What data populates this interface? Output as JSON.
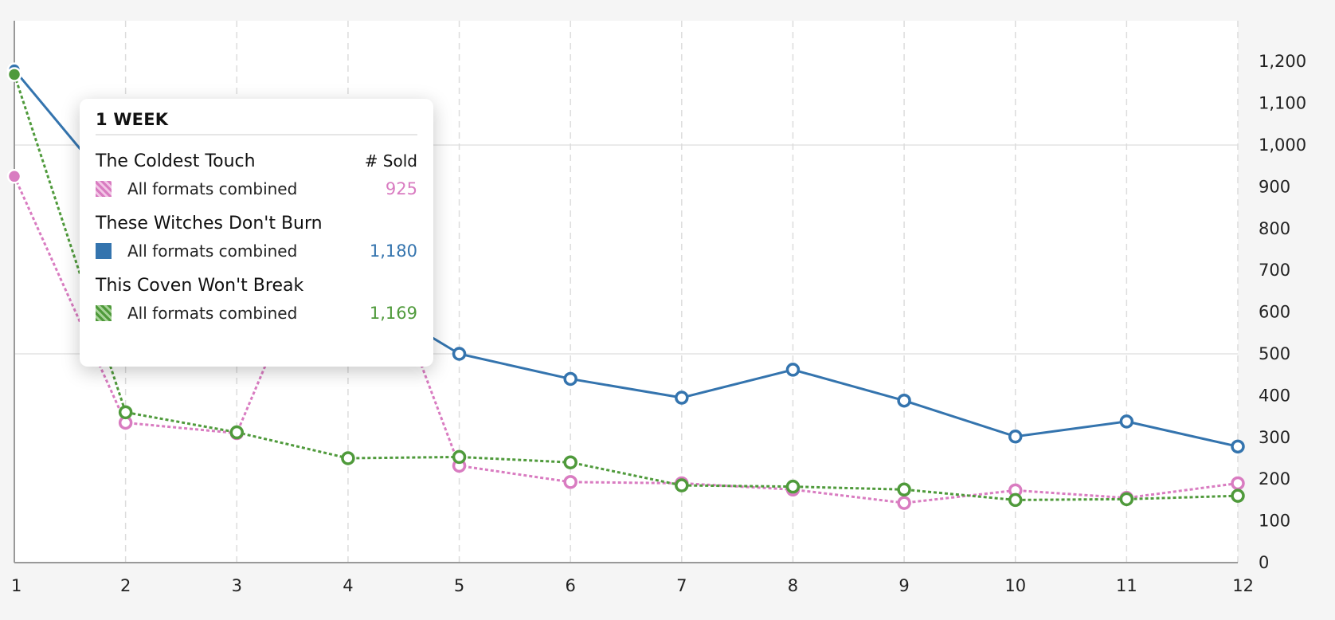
{
  "chart_data": {
    "type": "line",
    "x": [
      1,
      2,
      3,
      4,
      5,
      6,
      7,
      8,
      9,
      10,
      11,
      12
    ],
    "ylim": [
      0,
      1300
    ],
    "y_ticks": [
      0,
      100,
      200,
      300,
      400,
      500,
      600,
      700,
      800,
      900,
      1000,
      1100,
      1200
    ],
    "y_tick_labels": [
      "0",
      "100",
      "200",
      "300",
      "400",
      "500",
      "600",
      "700",
      "800",
      "900",
      "1,000",
      "1,100",
      "1,200"
    ],
    "x_tick_labels": [
      "1",
      "2",
      "3",
      "4",
      "5",
      "6",
      "7",
      "8",
      "9",
      "10",
      "11",
      "12"
    ],
    "y_axis_position": "right",
    "series": [
      {
        "name": "The Coldest Touch",
        "color": "#d97cc1",
        "style": "dotted",
        "values": [
          925,
          335,
          310,
          940,
          232,
          193,
          190,
          175,
          143,
          173,
          155,
          190
        ]
      },
      {
        "name": "These Witches Don't Burn",
        "color": "#3474ae",
        "style": "solid",
        "values": [
          1180,
          860,
          760,
          660,
          500,
          440,
          395,
          462,
          388,
          302,
          338,
          278
        ]
      },
      {
        "name": "This Coven Won't Break",
        "color": "#4f9a3b",
        "style": "dotted",
        "values": [
          1169,
          360,
          312,
          250,
          253,
          240,
          185,
          182,
          175,
          150,
          152,
          160
        ]
      }
    ]
  },
  "tooltip": {
    "title": "1 WEEK",
    "column_header": "# Sold",
    "books": [
      {
        "name": "The Coldest Touch",
        "format": "All formats combined",
        "value": "925",
        "color": "#d97cc1",
        "swatch": "sw-pink"
      },
      {
        "name": "These Witches Don't Burn",
        "format": "All formats combined",
        "value": "1,180",
        "color": "#3474ae",
        "swatch": "sw-blue"
      },
      {
        "name": "This Coven Won't Break",
        "format": "All formats combined",
        "value": "1,169",
        "color": "#4f9a3b",
        "swatch": "sw-green"
      }
    ]
  }
}
